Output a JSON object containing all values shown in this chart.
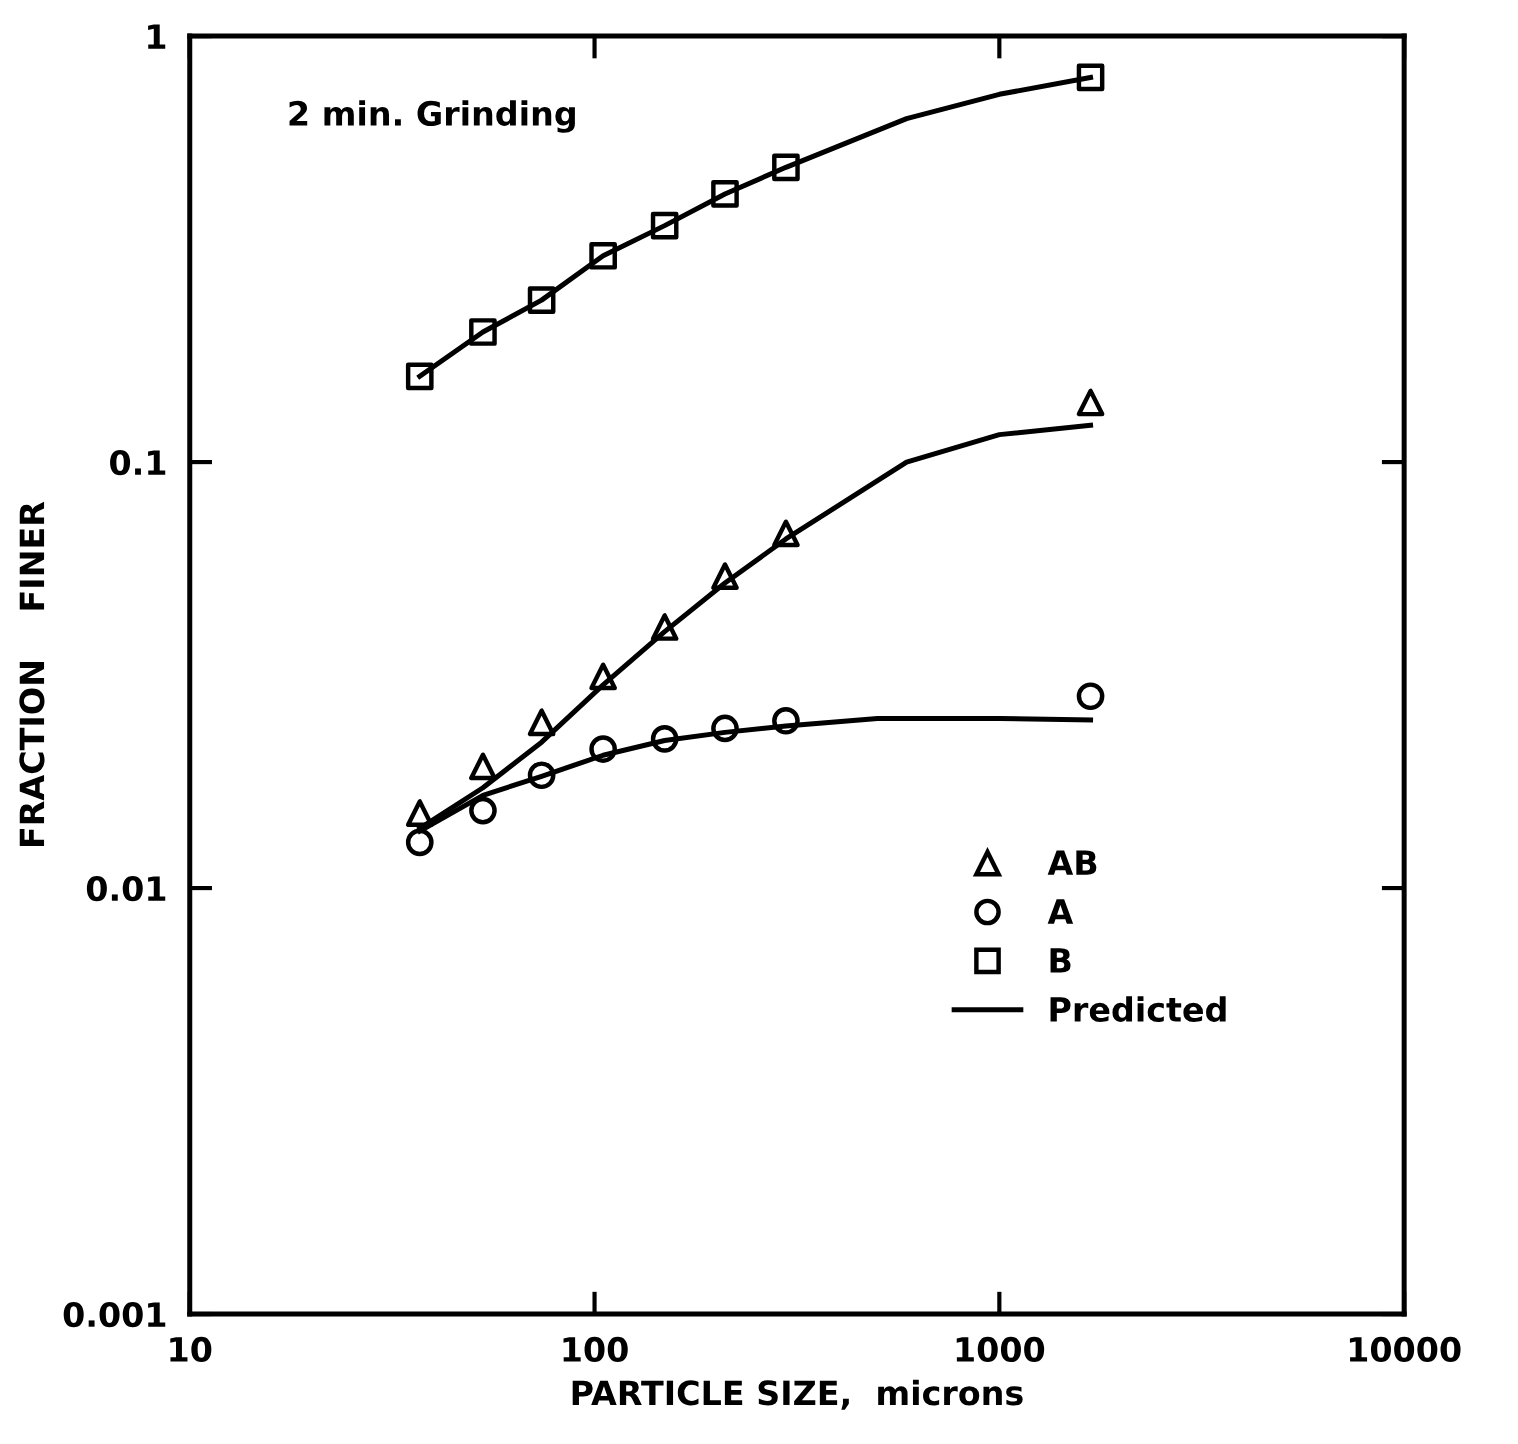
{
  "chart_data": {
    "type": "scatter",
    "xlabel": "PARTICLE SIZE,  microns",
    "ylabel": "FRACTION    FINER",
    "log": "xy",
    "xlim": [
      10,
      10000
    ],
    "xticks": [
      10,
      100,
      1000,
      10000
    ],
    "ylim": [
      0.001,
      1
    ],
    "yticks": [
      0.001,
      0.01,
      0.1,
      1
    ],
    "grid": false,
    "legend": "bottom right",
    "annotations": [
      "2 min. Grinding"
    ],
    "series": [
      {
        "name": "AB",
        "type": "scatter",
        "marker": "triangle",
        "color": "#000000",
        "x": [
          37,
          53,
          74,
          105,
          149,
          210,
          297,
          1680
        ],
        "values": [
          0.015,
          0.0193,
          0.0245,
          0.0314,
          0.041,
          0.054,
          0.068,
          0.138
        ]
      },
      {
        "name": "A",
        "type": "scatter",
        "marker": "circle",
        "color": "#000000",
        "x": [
          37,
          53,
          74,
          105,
          149,
          210,
          297,
          1680
        ],
        "values": [
          0.0128,
          0.0152,
          0.0184,
          0.0212,
          0.0224,
          0.0237,
          0.0247,
          0.0282
        ]
      },
      {
        "name": "B",
        "type": "scatter",
        "marker": "square",
        "color": "#000000",
        "x": [
          37,
          53,
          74,
          105,
          149,
          210,
          297,
          1680
        ],
        "values": [
          0.159,
          0.202,
          0.24,
          0.305,
          0.359,
          0.426,
          0.492,
          0.8
        ]
      },
      {
        "name": "Predicted",
        "type": "line",
        "line_style": "solid",
        "color": "#000000",
        "x": [
          37,
          53,
          74,
          105,
          149,
          210,
          297,
          590,
          1000,
          1680
        ],
        "values": [
          0.0138,
          0.0172,
          0.022,
          0.03,
          0.04,
          0.052,
          0.066,
          0.1,
          0.116,
          0.122
        ]
      },
      {
        "type": "line",
        "line_style": "solid",
        "color": "#000000",
        "x": [
          37,
          53,
          74,
          105,
          149,
          210,
          297,
          500,
          1000,
          1680
        ],
        "values": [
          0.0136,
          0.0165,
          0.0183,
          0.0205,
          0.0222,
          0.0232,
          0.024,
          0.025,
          0.025,
          0.0248
        ]
      },
      {
        "type": "line",
        "line_style": "solid",
        "color": "#000000",
        "x": [
          37,
          53,
          74,
          105,
          149,
          210,
          297,
          590,
          1000,
          1680
        ],
        "values": [
          0.159,
          0.202,
          0.24,
          0.305,
          0.359,
          0.426,
          0.492,
          0.64,
          0.73,
          0.8
        ]
      }
    ]
  }
}
